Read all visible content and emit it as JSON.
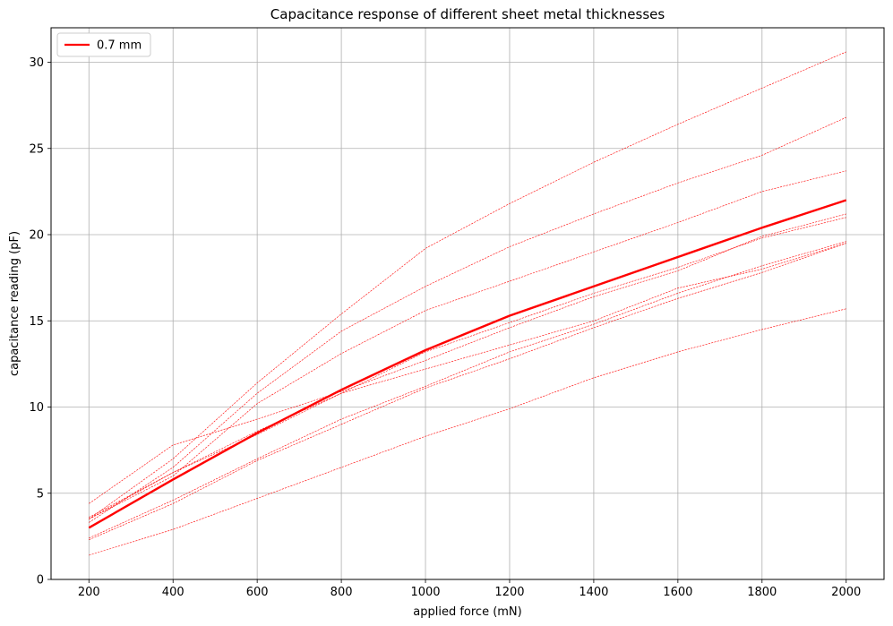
{
  "chart_data": {
    "type": "line",
    "title": "Capacitance response of different sheet metal thicknesses",
    "xlabel": "applied force (mN)",
    "ylabel": "capacitance reading (pF)",
    "xlim": [
      110,
      2090
    ],
    "ylim": [
      0,
      32
    ],
    "x": [
      200,
      400,
      600,
      800,
      1000,
      1200,
      1400,
      1600,
      1800,
      2000
    ],
    "xticks": [
      200,
      400,
      600,
      800,
      1000,
      1200,
      1400,
      1600,
      1800,
      2000
    ],
    "yticks": [
      0,
      5,
      10,
      15,
      20,
      25,
      30
    ],
    "grid": true,
    "legend_position": "top-left",
    "highlight_color": "#ff0000",
    "highlight": {
      "name": "0.7 mm",
      "values": [
        3.0,
        5.8,
        8.5,
        11.0,
        13.3,
        15.3,
        17.0,
        18.7,
        20.4,
        22.0
      ]
    },
    "series": [
      {
        "values": [
          3.5,
          7.0,
          11.4,
          15.4,
          19.2,
          21.8,
          24.2,
          26.4,
          28.5,
          30.6
        ]
      },
      {
        "values": [
          3.3,
          6.5,
          10.8,
          14.4,
          17.0,
          19.3,
          21.2,
          23.0,
          24.6,
          26.8
        ]
      },
      {
        "values": [
          3.5,
          6.0,
          10.2,
          13.1,
          15.6,
          17.3,
          19.0,
          20.7,
          22.5,
          23.7
        ]
      },
      {
        "values": [
          4.4,
          7.8,
          9.3,
          10.9,
          12.7,
          14.6,
          16.4,
          17.9,
          19.9,
          21.2
        ]
      },
      {
        "values": [
          3.6,
          6.2,
          8.6,
          10.8,
          12.2,
          13.6,
          15.0,
          16.9,
          18.0,
          19.5
        ]
      },
      {
        "values": [
          2.4,
          4.6,
          7.0,
          9.3,
          11.2,
          13.2,
          14.8,
          16.6,
          18.2,
          19.6
        ]
      },
      {
        "values": [
          2.3,
          4.4,
          6.9,
          9.0,
          11.1,
          12.8,
          14.6,
          16.3,
          17.8,
          19.5
        ]
      },
      {
        "values": [
          3.5,
          6.2,
          8.4,
          10.8,
          13.2,
          14.9,
          16.6,
          18.1,
          19.8,
          21.0
        ]
      },
      {
        "values": [
          1.4,
          2.9,
          4.7,
          6.5,
          8.3,
          9.9,
          11.7,
          13.2,
          14.5,
          15.7
        ]
      }
    ]
  }
}
